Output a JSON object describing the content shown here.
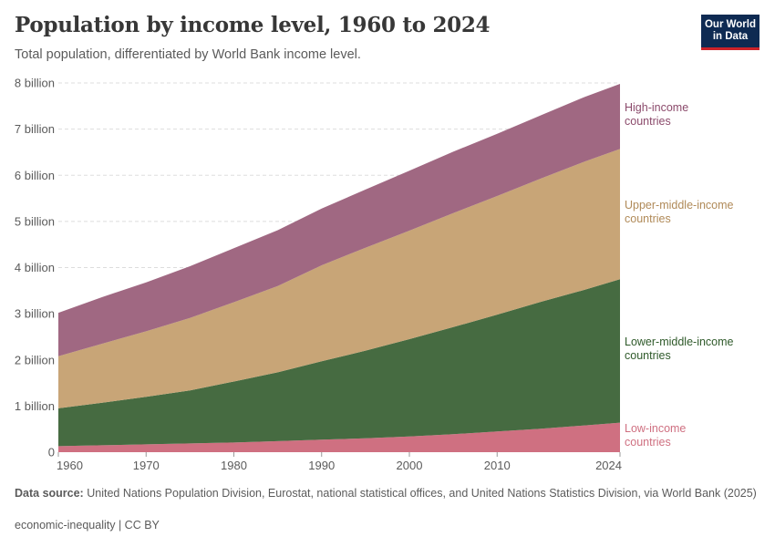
{
  "header": {
    "title": "Population by income level, 1960 to 2024",
    "subtitle": "Total population, differentiated by World Bank income level.",
    "logo_line1": "Our World",
    "logo_line2": "in Data"
  },
  "footer": {
    "source_label": "Data source:",
    "source_text": "United Nations Population Division, Eurostat, national statistical offices, and United Nations Statistics Division, via World Bank (2025)",
    "license": "economic-inequality | CC BY"
  },
  "chart_data": {
    "type": "area",
    "stacked": true,
    "title": "Population by income level, 1960 to 2024",
    "subtitle": "Total population, differentiated by World Bank income level.",
    "xlabel": "",
    "ylabel": "",
    "x": [
      1960,
      1965,
      1970,
      1975,
      1980,
      1985,
      1990,
      1995,
      2000,
      2005,
      2010,
      2015,
      2020,
      2024
    ],
    "xlim": [
      1960,
      2024
    ],
    "ylim": [
      0,
      8
    ],
    "y_unit": "billion",
    "xticks": [
      "1960",
      "1970",
      "1980",
      "1990",
      "2000",
      "2010",
      "2024"
    ],
    "yticks": [
      {
        "value": 0,
        "label": "0"
      },
      {
        "value": 1,
        "label": "1 billion"
      },
      {
        "value": 2,
        "label": "2 billion"
      },
      {
        "value": 3,
        "label": "3 billion"
      },
      {
        "value": 4,
        "label": "4 billion"
      },
      {
        "value": 5,
        "label": "5 billion"
      },
      {
        "value": 6,
        "label": "6 billion"
      },
      {
        "value": 7,
        "label": "7 billion"
      },
      {
        "value": 8,
        "label": "8 billion"
      }
    ],
    "grid": true,
    "legend": "right-inline",
    "series": [
      {
        "name": "Low-income countries",
        "label_lines": [
          "Low-income",
          "countries"
        ],
        "color": "#cf7081",
        "values": [
          0.13,
          0.15,
          0.17,
          0.19,
          0.21,
          0.24,
          0.27,
          0.3,
          0.34,
          0.39,
          0.45,
          0.51,
          0.58,
          0.64
        ]
      },
      {
        "name": "Lower-middle-income countries",
        "label_lines": [
          "Lower-middle-income",
          "countries"
        ],
        "color": "#466b41",
        "label_color": "#2f5a2a",
        "values": [
          0.82,
          0.92,
          1.03,
          1.15,
          1.32,
          1.49,
          1.7,
          1.9,
          2.11,
          2.32,
          2.53,
          2.75,
          2.94,
          3.11
        ]
      },
      {
        "name": "Upper-middle-income countries",
        "label_lines": [
          "Upper-middle-income",
          "countries"
        ],
        "color": "#c8a577",
        "label_color": "#b08a58",
        "values": [
          1.13,
          1.28,
          1.42,
          1.57,
          1.72,
          1.87,
          2.08,
          2.23,
          2.35,
          2.47,
          2.57,
          2.67,
          2.78,
          2.82
        ]
      },
      {
        "name": "High-income countries",
        "label_lines": [
          "High-income",
          "countries"
        ],
        "color": "#a06882",
        "label_color": "#8b4a6b",
        "values": [
          0.94,
          1.01,
          1.06,
          1.12,
          1.17,
          1.21,
          1.23,
          1.26,
          1.3,
          1.33,
          1.35,
          1.37,
          1.4,
          1.41
        ]
      }
    ]
  }
}
